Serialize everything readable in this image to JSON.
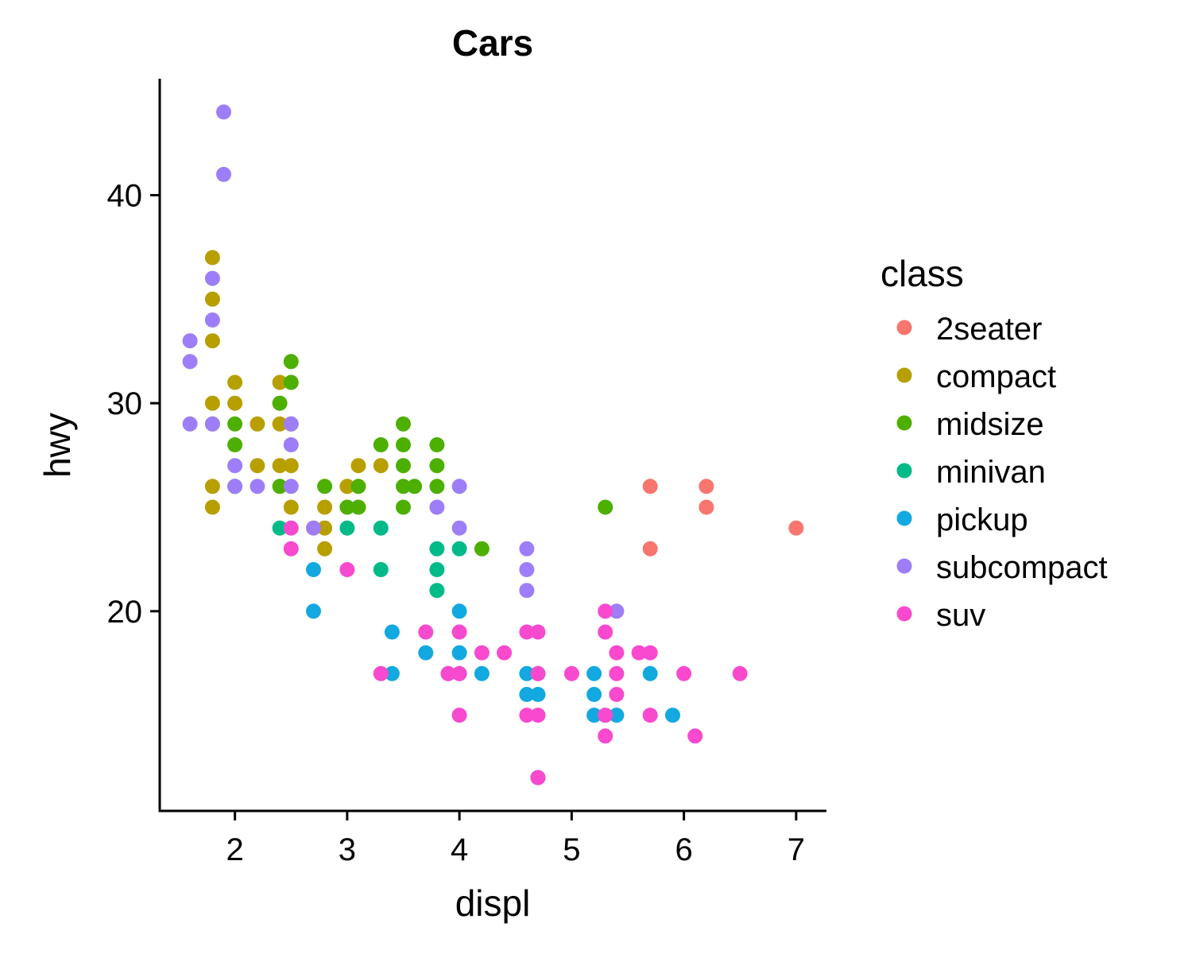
{
  "chart_data": {
    "type": "scatter",
    "title": "Cars",
    "xlabel": "displ",
    "ylabel": "hwy",
    "xlim": [
      1.33,
      7.27
    ],
    "ylim": [
      10.4,
      45.6
    ],
    "x_ticks": [
      2,
      3,
      4,
      5,
      6,
      7
    ],
    "y_ticks": [
      20,
      30,
      40
    ],
    "grid": false,
    "legend": {
      "title": "class",
      "placement": "right"
    },
    "series": [
      {
        "name": "2seater",
        "color": "#F8766D",
        "points": [
          [
            5.7,
            26
          ],
          [
            5.7,
            23
          ],
          [
            6.2,
            26
          ],
          [
            6.2,
            25
          ],
          [
            7.0,
            24
          ]
        ]
      },
      {
        "name": "compact",
        "color": "#B79F00",
        "points": [
          [
            1.8,
            37
          ],
          [
            1.8,
            35
          ],
          [
            1.8,
            33
          ],
          [
            1.8,
            30
          ],
          [
            1.8,
            26
          ],
          [
            1.8,
            25
          ],
          [
            2.0,
            31
          ],
          [
            2.0,
            30
          ],
          [
            2.2,
            29
          ],
          [
            2.2,
            27
          ],
          [
            2.4,
            31
          ],
          [
            2.4,
            29
          ],
          [
            2.4,
            27
          ],
          [
            2.5,
            27
          ],
          [
            2.5,
            25
          ],
          [
            2.8,
            25
          ],
          [
            2.8,
            24
          ],
          [
            2.8,
            23
          ],
          [
            3.0,
            26
          ],
          [
            3.1,
            27
          ],
          [
            3.3,
            27
          ],
          [
            2.0,
            26
          ]
        ]
      },
      {
        "name": "midsize",
        "color": "#4DAF00",
        "points": [
          [
            1.8,
            29
          ],
          [
            2.0,
            29
          ],
          [
            2.0,
            28
          ],
          [
            2.0,
            26
          ],
          [
            2.4,
            30
          ],
          [
            2.4,
            26
          ],
          [
            2.5,
            32
          ],
          [
            2.5,
            31
          ],
          [
            2.5,
            29
          ],
          [
            2.8,
            26
          ],
          [
            3.0,
            25
          ],
          [
            3.1,
            26
          ],
          [
            3.1,
            25
          ],
          [
            3.3,
            28
          ],
          [
            3.5,
            29
          ],
          [
            3.5,
            28
          ],
          [
            3.5,
            27
          ],
          [
            3.5,
            26
          ],
          [
            3.5,
            25
          ],
          [
            3.6,
            26
          ],
          [
            3.8,
            28
          ],
          [
            3.8,
            27
          ],
          [
            3.8,
            26
          ],
          [
            4.2,
            23
          ],
          [
            5.3,
            25
          ]
        ]
      },
      {
        "name": "minivan",
        "color": "#00BA88",
        "points": [
          [
            2.4,
            24
          ],
          [
            3.0,
            24
          ],
          [
            3.3,
            24
          ],
          [
            3.3,
            22
          ],
          [
            3.8,
            23
          ],
          [
            3.8,
            22
          ],
          [
            3.8,
            21
          ],
          [
            4.0,
            23
          ]
        ]
      },
      {
        "name": "pickup",
        "color": "#12A9E0",
        "points": [
          [
            2.7,
            22
          ],
          [
            2.7,
            20
          ],
          [
            3.4,
            19
          ],
          [
            3.4,
            17
          ],
          [
            3.7,
            18
          ],
          [
            3.9,
            17
          ],
          [
            4.0,
            20
          ],
          [
            4.0,
            18
          ],
          [
            4.0,
            17
          ],
          [
            4.2,
            17
          ],
          [
            4.6,
            17
          ],
          [
            4.6,
            16
          ],
          [
            4.7,
            17
          ],
          [
            4.7,
            16
          ],
          [
            4.7,
            12
          ],
          [
            5.2,
            17
          ],
          [
            5.2,
            16
          ],
          [
            5.2,
            15
          ],
          [
            5.3,
            15
          ],
          [
            5.4,
            15
          ],
          [
            5.7,
            17
          ],
          [
            5.9,
            15
          ]
        ]
      },
      {
        "name": "subcompact",
        "color": "#9E7EF8",
        "points": [
          [
            1.6,
            33
          ],
          [
            1.6,
            32
          ],
          [
            1.6,
            29
          ],
          [
            1.8,
            29
          ],
          [
            1.9,
            44
          ],
          [
            1.9,
            41
          ],
          [
            1.8,
            36
          ],
          [
            1.8,
            34
          ],
          [
            2.0,
            27
          ],
          [
            2.0,
            26
          ],
          [
            2.2,
            26
          ],
          [
            2.5,
            29
          ],
          [
            2.5,
            28
          ],
          [
            2.5,
            26
          ],
          [
            2.7,
            24
          ],
          [
            3.8,
            25
          ],
          [
            4.0,
            26
          ],
          [
            4.0,
            24
          ],
          [
            4.6,
            23
          ],
          [
            4.6,
            22
          ],
          [
            4.6,
            21
          ],
          [
            5.4,
            20
          ]
        ]
      },
      {
        "name": "suv",
        "color": "#F849CF",
        "points": [
          [
            2.5,
            24
          ],
          [
            2.5,
            23
          ],
          [
            3.0,
            22
          ],
          [
            3.3,
            17
          ],
          [
            3.7,
            19
          ],
          [
            3.9,
            17
          ],
          [
            4.0,
            19
          ],
          [
            4.0,
            17
          ],
          [
            4.0,
            15
          ],
          [
            4.2,
            18
          ],
          [
            4.4,
            18
          ],
          [
            4.6,
            19
          ],
          [
            4.6,
            15
          ],
          [
            4.7,
            19
          ],
          [
            4.7,
            17
          ],
          [
            4.7,
            15
          ],
          [
            4.7,
            12
          ],
          [
            5.0,
            17
          ],
          [
            5.3,
            20
          ],
          [
            5.3,
            19
          ],
          [
            5.3,
            15
          ],
          [
            5.3,
            14
          ],
          [
            5.4,
            18
          ],
          [
            5.4,
            17
          ],
          [
            5.4,
            16
          ],
          [
            5.6,
            18
          ],
          [
            5.7,
            18
          ],
          [
            5.7,
            15
          ],
          [
            6.0,
            17
          ],
          [
            6.1,
            14
          ],
          [
            6.5,
            17
          ]
        ]
      }
    ]
  }
}
